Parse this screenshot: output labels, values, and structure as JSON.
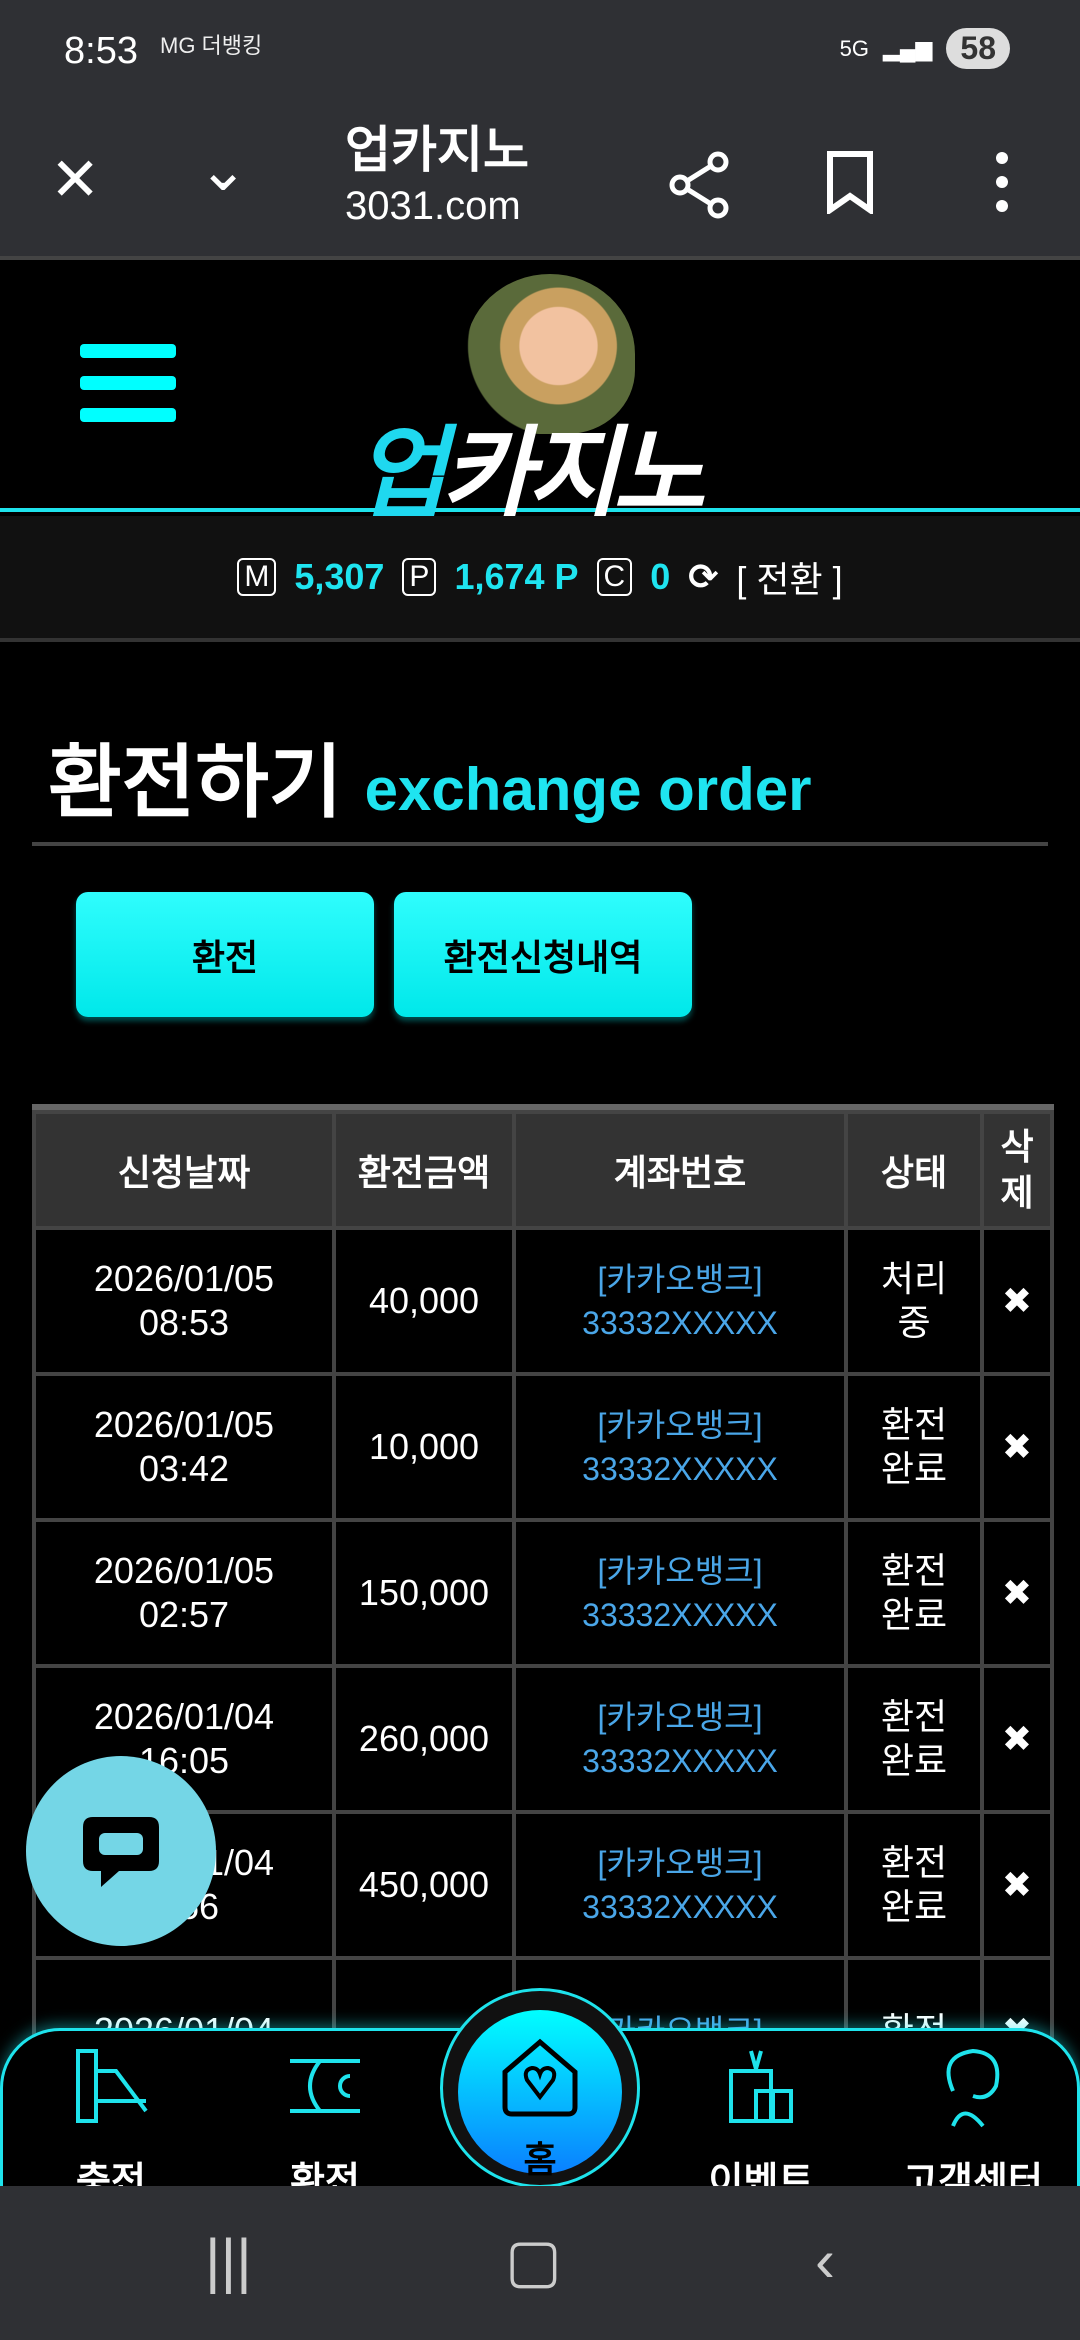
{
  "status_bar": {
    "time": "8:53",
    "apps": "MG 더뱅킹",
    "network": "5G",
    "battery": "58"
  },
  "browser": {
    "title": "업카지노",
    "url": "3031.com",
    "icons": [
      "close-icon",
      "chevron-down-icon",
      "share-icon",
      "bookmark-icon",
      "more-icon"
    ]
  },
  "header": {
    "logo_text_a": "업",
    "logo_text_b": "카지노"
  },
  "balance": {
    "m_label": "M",
    "m_value": "5,307",
    "p_label": "P",
    "p_value": "1,674 P",
    "c_label": "C",
    "c_value": "0",
    "switch": "[ 전환 ]"
  },
  "page": {
    "title_ko": "환전하기",
    "title_en": "exchange order"
  },
  "buttons": {
    "exchange": "환전",
    "history": "환전신청내역"
  },
  "table": {
    "headers": [
      "신청날짜",
      "환전금액",
      "계좌번호",
      "상태",
      "삭제"
    ],
    "rows": [
      {
        "date": "2026/01/05",
        "time": "08:53",
        "amount": "40,000",
        "bank": "[카카오뱅크]",
        "account": "33332XXXXX",
        "status": "처리중",
        "del": "✖"
      },
      {
        "date": "2026/01/05",
        "time": "03:42",
        "amount": "10,000",
        "bank": "[카카오뱅크]",
        "account": "33332XXXXX",
        "status": "환전완료",
        "del": "✖"
      },
      {
        "date": "2026/01/05",
        "time": "02:57",
        "amount": "150,000",
        "bank": "[카카오뱅크]",
        "account": "33332XXXXX",
        "status": "환전완료",
        "del": "✖"
      },
      {
        "date": "2026/01/04",
        "time": "16:05",
        "amount": "260,000",
        "bank": "[카카오뱅크]",
        "account": "33332XXXXX",
        "status": "환전완료",
        "del": "✖"
      },
      {
        "date": "2026/01/04",
        "time": "_:56",
        "amount": "450,000",
        "bank": "[카카오뱅크]",
        "account": "33332XXXXX",
        "status": "환전완료",
        "del": "✖"
      },
      {
        "date": "2026/01/04",
        "time": "",
        "amount": "",
        "bank": "[카카오뱅크]",
        "account": "",
        "status": "환전",
        "del": "✖"
      }
    ]
  },
  "bottom_nav": {
    "items": [
      "충전",
      "환전",
      "홈",
      "이벤트",
      "고객센터"
    ]
  },
  "colors": {
    "accent": "#1fe4f0",
    "account_link": "#4aa6e8",
    "background": "#000000"
  }
}
